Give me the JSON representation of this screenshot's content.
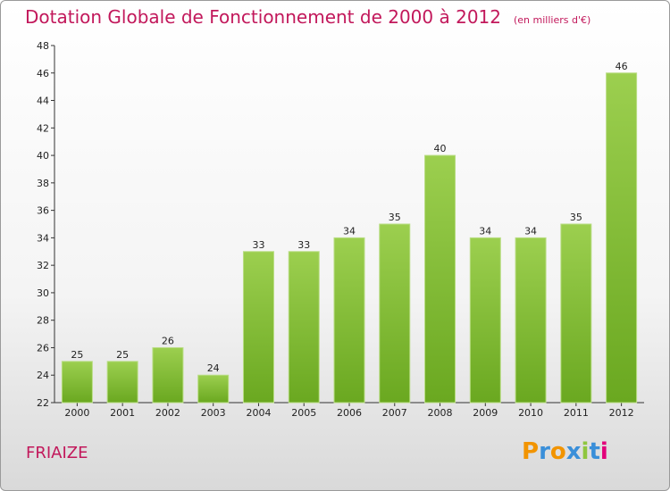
{
  "title": "Dotation Globale de Fonctionnement de 2000 à 2012",
  "subtitle": "(en milliers d'€)",
  "commune": "FRIAIZE",
  "logo": {
    "letters": [
      "P",
      "r",
      "o",
      "x",
      "i",
      "t",
      "i"
    ],
    "colors": [
      "#f29400",
      "#3a8fd9",
      "#f29400",
      "#3a8fd9",
      "#8ec63f",
      "#3a8fd9",
      "#e2007a"
    ]
  },
  "chart_data": {
    "type": "bar",
    "categories": [
      "2000",
      "2001",
      "2002",
      "2003",
      "2004",
      "2005",
      "2006",
      "2007",
      "2008",
      "2009",
      "2010",
      "2011",
      "2012"
    ],
    "values": [
      25,
      25,
      26,
      24,
      33,
      33,
      34,
      35,
      40,
      34,
      34,
      35,
      46
    ],
    "ylim": [
      22,
      48
    ],
    "yticks": [
      22,
      24,
      26,
      28,
      30,
      32,
      34,
      36,
      38,
      40,
      42,
      44,
      46,
      48
    ],
    "grid": false,
    "bar_color_top": "#9ccf4f",
    "bar_color_bottom": "#6aa820"
  }
}
